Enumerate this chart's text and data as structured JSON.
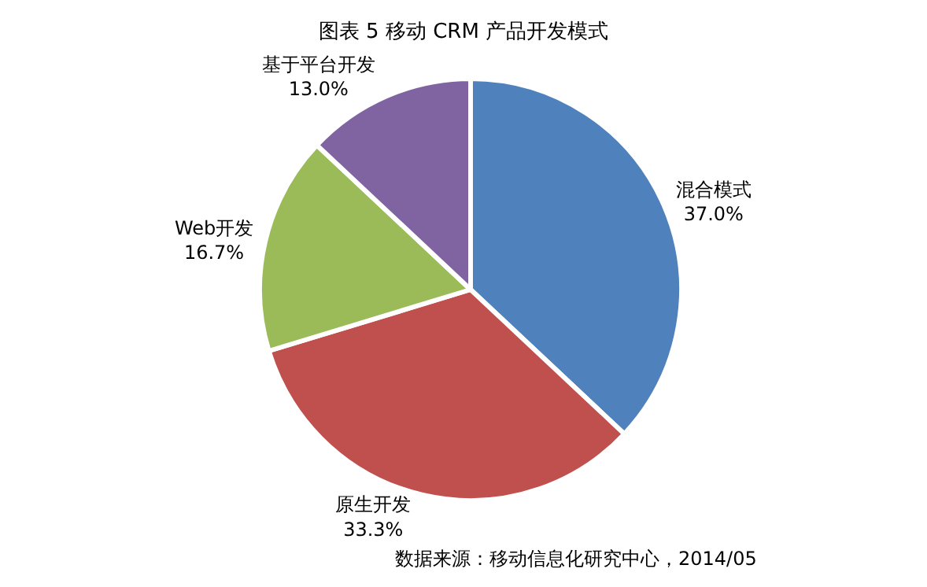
{
  "chart_data": {
    "type": "pie",
    "title": "图表 5 移动 CRM 产品开发模式",
    "categories": [
      "混合模式",
      "原生开发",
      "Web开发",
      "基于平台开发"
    ],
    "values": [
      37.0,
      33.3,
      16.7,
      13.0
    ],
    "value_labels": [
      "37.0%",
      "33.3%",
      "16.7%",
      "13.0%"
    ],
    "colors": [
      "#4f81bd",
      "#c0504d",
      "#9bbb59",
      "#8064a2"
    ],
    "annotations": [
      "数据来源：移动信息化研究中心，2014/05"
    ],
    "legend": false
  }
}
